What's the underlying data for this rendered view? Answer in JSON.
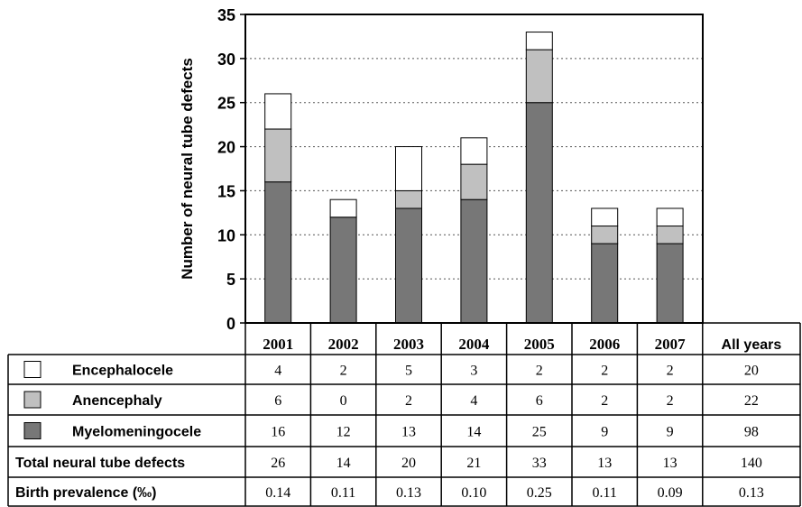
{
  "chart_data": {
    "type": "bar",
    "stacked": true,
    "title": "",
    "ylabel": "Number of neural tube defects",
    "ylim": [
      0,
      35
    ],
    "yticks": [
      "0",
      "5",
      "10",
      "15",
      "20",
      "25",
      "30",
      "35"
    ],
    "grid": "horizontal-dotted",
    "categories": [
      "2001",
      "2002",
      "2003",
      "2004",
      "2005",
      "2006",
      "2007"
    ],
    "series": [
      {
        "name": "Myelomeningocele",
        "values": [
          16,
          12,
          13,
          14,
          25,
          9,
          9
        ],
        "color": "#777777"
      },
      {
        "name": "Anencephaly",
        "values": [
          6,
          0,
          2,
          4,
          6,
          2,
          2
        ],
        "color": "#c0c0c0"
      },
      {
        "name": "Encephalocele",
        "values": [
          4,
          2,
          5,
          3,
          2,
          2,
          2
        ],
        "color": "#ffffff"
      }
    ]
  },
  "table": {
    "header_extra": "All years",
    "rows": [
      {
        "label": "Encephalocele",
        "swatch": "#ffffff",
        "cells": [
          "4",
          "2",
          "5",
          "3",
          "2",
          "2",
          "2",
          "20"
        ]
      },
      {
        "label": "Anencephaly",
        "swatch": "#c0c0c0",
        "cells": [
          "6",
          "0",
          "2",
          "4",
          "6",
          "2",
          "2",
          "22"
        ]
      },
      {
        "label": "Myelomeningocele",
        "swatch": "#777777",
        "cells": [
          "16",
          "12",
          "13",
          "14",
          "25",
          "9",
          "9",
          "98"
        ]
      },
      {
        "label": "Total neural tube defects",
        "swatch": null,
        "cells": [
          "26",
          "14",
          "20",
          "21",
          "33",
          "13",
          "13",
          "140"
        ]
      },
      {
        "label": "Birth prevalence (‰)",
        "swatch": null,
        "cells": [
          "0.14",
          "0.11",
          "0.13",
          "0.10",
          "0.25",
          "0.11",
          "0.09",
          "0.13"
        ]
      }
    ]
  }
}
